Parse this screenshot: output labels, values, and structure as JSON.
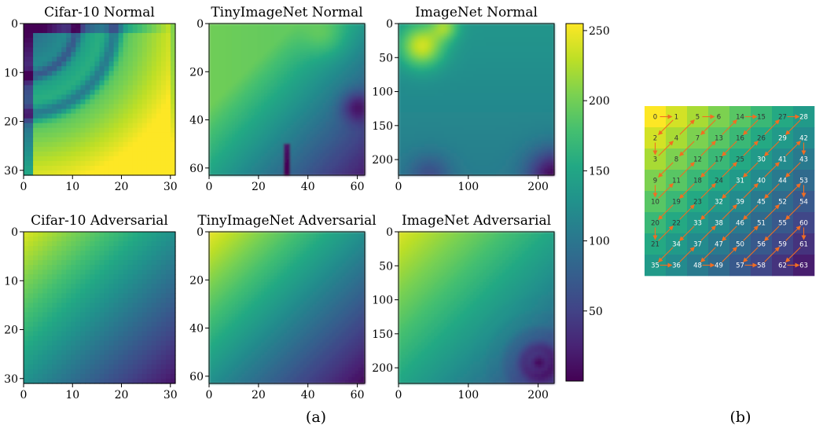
{
  "figure": {
    "captions": [
      "(a)",
      "(b)"
    ]
  },
  "colors": {
    "arrow": "#f26d21",
    "axis": "#000000",
    "colormap": [
      "#440154",
      "#482475",
      "#414487",
      "#355f8d",
      "#2a788e",
      "#21918c",
      "#22a884",
      "#44bf70",
      "#7ad151",
      "#bddf26",
      "#fde725"
    ]
  },
  "chart_data": [
    {
      "type": "heatmap",
      "id": "cifar-normal",
      "title": "Cifar-10 Normal",
      "size": 32,
      "x_ticks": [
        0,
        10,
        20,
        30
      ],
      "y_ticks": [
        0,
        10,
        20,
        30
      ],
      "xlim": [
        0,
        31
      ],
      "ylim": [
        31,
        0
      ],
      "pattern": "Mostly bright along right and bottom edges; dark band at top-left rows and left column; darker arcs curving around the top-left corner"
    },
    {
      "type": "heatmap",
      "id": "tiny-normal",
      "title": "TinyImageNet Normal",
      "size": 64,
      "x_ticks": [
        0,
        20,
        40,
        60
      ],
      "y_ticks": [
        0,
        20,
        40,
        60
      ],
      "xlim": [
        0,
        63
      ],
      "ylim": [
        63,
        0
      ],
      "pattern": "Bright yellow-green at top and left; darker blue toward bottom-right; thin dark vertical line near x=32 at bottom"
    },
    {
      "type": "heatmap",
      "id": "imagenet-normal",
      "title": "ImageNet Normal",
      "size": 224,
      "x_ticks": [
        0,
        100,
        200
      ],
      "y_ticks": [
        0,
        50,
        100,
        150,
        200
      ],
      "xlim": [
        0,
        223
      ],
      "ylim": [
        223,
        0
      ],
      "pattern": "Bright blobs at top-left; medium teal background; dark blue at bottom-right corner"
    },
    {
      "type": "heatmap",
      "id": "cifar-adv",
      "title": "Cifar-10 Adversarial",
      "size": 32,
      "x_ticks": [
        0,
        10,
        20,
        30
      ],
      "y_ticks": [
        0,
        10,
        20,
        30
      ],
      "xlim": [
        0,
        31
      ],
      "ylim": [
        31,
        0
      ],
      "pattern": "Diagonal gradient from bright yellow (top-left) to dark purple (bottom-right)"
    },
    {
      "type": "heatmap",
      "id": "tiny-adv",
      "title": "TinyImageNet Adversarial",
      "size": 64,
      "x_ticks": [
        0,
        20,
        40,
        60
      ],
      "y_ticks": [
        0,
        20,
        40,
        60
      ],
      "xlim": [
        0,
        63
      ],
      "ylim": [
        63,
        0
      ],
      "pattern": "Diagonal gradient from yellow (top-left) to dark purple (bottom-right)"
    },
    {
      "type": "heatmap",
      "id": "imagenet-adv",
      "title": "ImageNet Adversarial",
      "size": 224,
      "x_ticks": [
        0,
        100,
        200
      ],
      "y_ticks": [
        0,
        50,
        100,
        150,
        200
      ],
      "xlim": [
        0,
        223
      ],
      "ylim": [
        223,
        0
      ],
      "pattern": "Diagonal gradient, bright top-left; dark concentric rings centred near (200,190)"
    },
    {
      "type": "colorbar",
      "id": "colorbar",
      "range": [
        0,
        255
      ],
      "ticks": [
        50,
        100,
        150,
        200,
        250
      ]
    },
    {
      "type": "heatmap",
      "id": "zigzag",
      "description": "8x8 zig-zag scan order",
      "grid_size": 8,
      "order": [
        [
          0,
          1,
          5,
          6,
          14,
          15,
          27,
          28
        ],
        [
          2,
          4,
          7,
          13,
          16,
          26,
          29,
          42
        ],
        [
          3,
          8,
          12,
          17,
          25,
          30,
          41,
          43
        ],
        [
          9,
          11,
          18,
          24,
          31,
          40,
          44,
          53
        ],
        [
          10,
          19,
          23,
          32,
          39,
          45,
          52,
          54
        ],
        [
          20,
          22,
          33,
          38,
          46,
          51,
          55,
          60
        ],
        [
          21,
          34,
          37,
          47,
          50,
          56,
          59,
          61
        ],
        [
          35,
          36,
          48,
          49,
          57,
          58,
          62,
          63
        ]
      ]
    }
  ]
}
